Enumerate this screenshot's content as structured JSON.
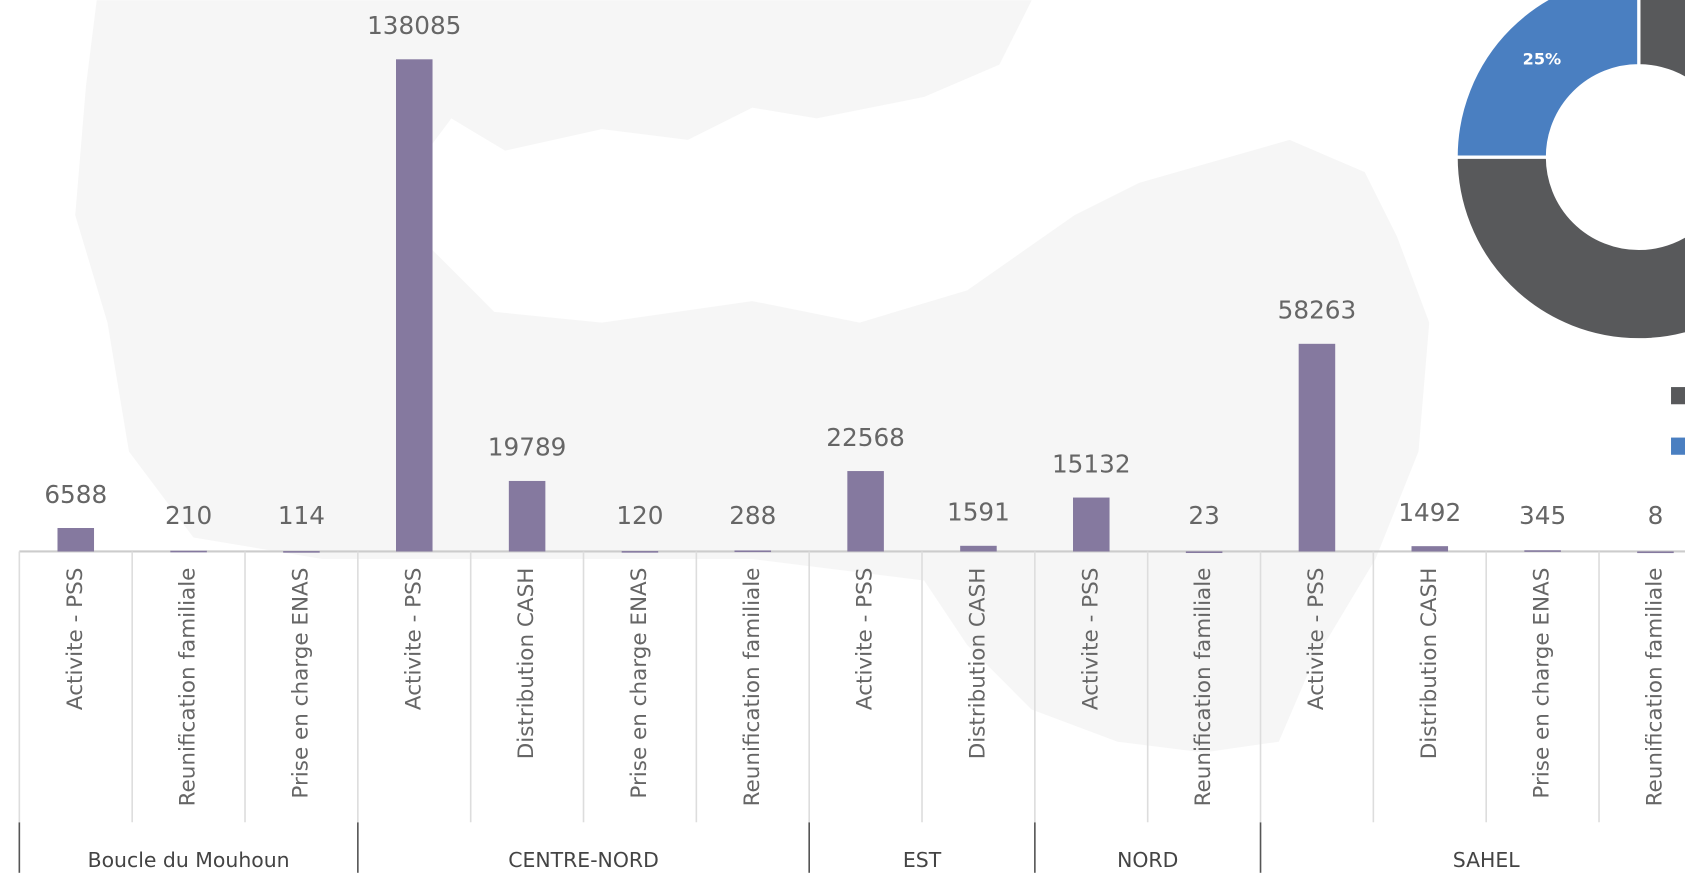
{
  "chart_data": [
    {
      "type": "bar",
      "color": "#85799f",
      "groups": [
        {
          "name": "Boucle du Mouhoun",
          "categories": [
            "Activite - PSS",
            "Reunification familiale",
            "Prise en charge ENAS"
          ],
          "values": [
            6588,
            210,
            114
          ]
        },
        {
          "name": "CENTRE-NORD",
          "categories": [
            "Activite - PSS",
            "Distribution CASH",
            "Prise en charge ENAS",
            "Reunification familiale"
          ],
          "values": [
            138085,
            19789,
            120,
            288
          ]
        },
        {
          "name": "EST",
          "categories": [
            "Activite - PSS",
            "Distribution CASH"
          ],
          "values": [
            22568,
            1591
          ]
        },
        {
          "name": "NORD",
          "categories": [
            "Activite - PSS",
            "Reunification familiale"
          ],
          "values": [
            15132,
            23
          ]
        },
        {
          "name": "SAHEL",
          "categories": [
            "Activite - PSS",
            "Distribution CASH",
            "Prise en charge ENAS",
            "Reunification familiale"
          ],
          "values": [
            58263,
            1492,
            345,
            8
          ]
        }
      ]
    },
    {
      "type": "pie",
      "values": [
        75,
        25
      ],
      "value_labels": [
        null,
        "25%"
      ],
      "colors": [
        "#58595b",
        "#4a7fc1"
      ]
    }
  ]
}
